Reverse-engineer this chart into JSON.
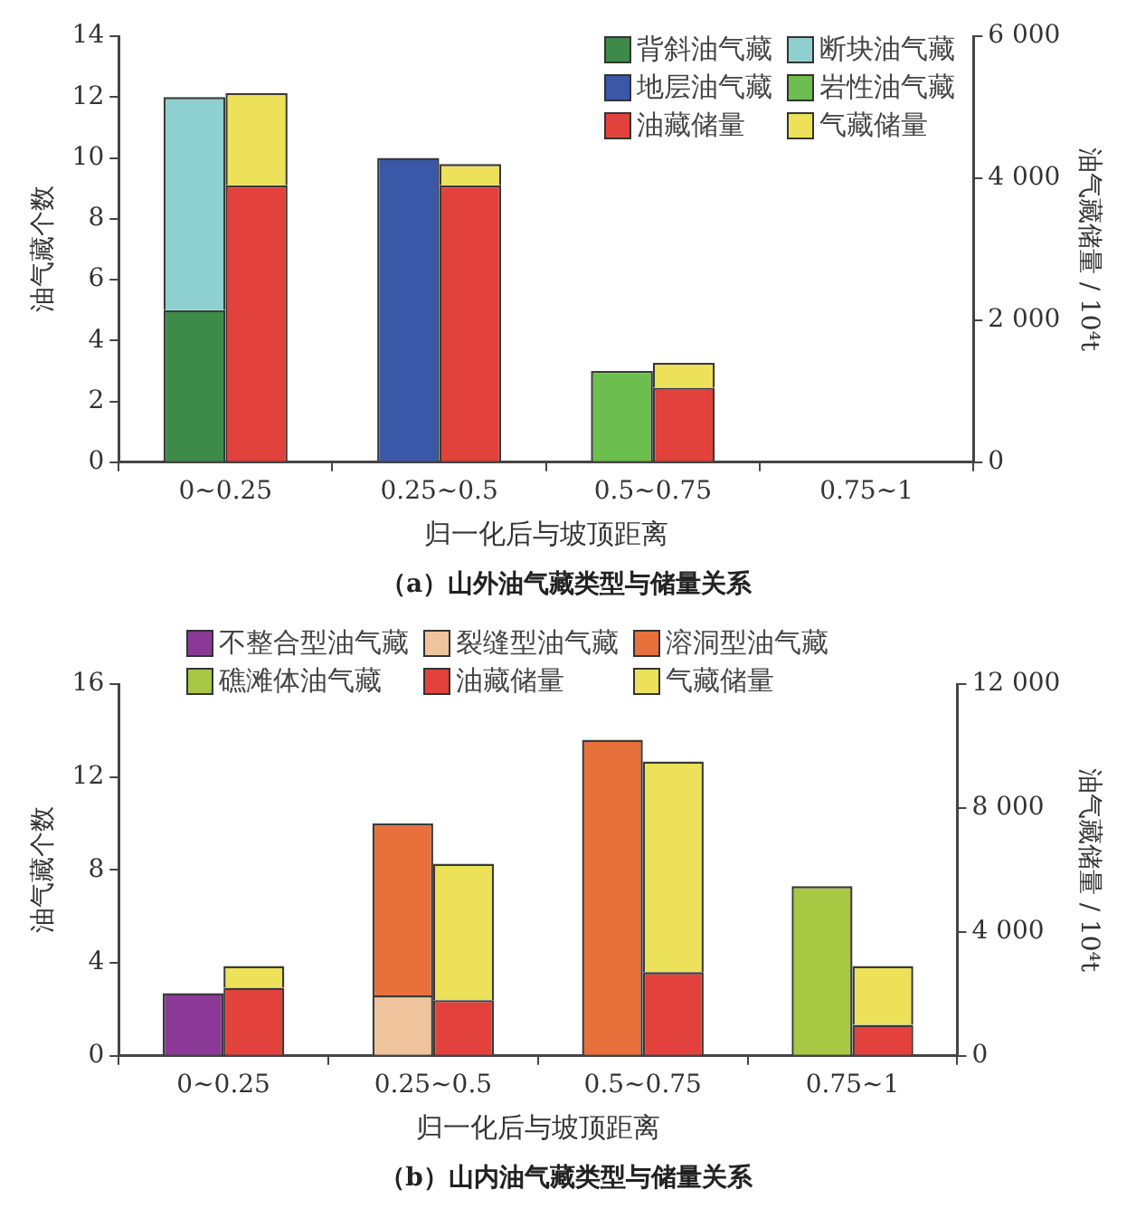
{
  "chart_data": [
    {
      "type": "bar",
      "stacked": true,
      "title": "（a）山外油气藏类型与储量关系",
      "xlabel": "归一化后与坡顶距离",
      "ylabel": "油气藏个数",
      "y2label": "油气藏储量 / 10⁴t",
      "categories": [
        "0~0.25",
        "0.25~0.5",
        "0.5~0.75",
        "0.75~1"
      ],
      "ylim": [
        0,
        14
      ],
      "yticks": [
        0,
        2,
        4,
        6,
        8,
        10,
        12,
        14
      ],
      "y2lim": [
        0,
        6000
      ],
      "y2ticks": [
        0,
        {
          "value": 2000,
          "label": "2 000"
        },
        {
          "value": 4000,
          "label": "4 000"
        },
        {
          "value": 6000,
          "label": "6 000"
        }
      ],
      "grid": false,
      "legend": "top right",
      "series": [
        {
          "name": "背斜油气藏",
          "color": "#3e8a48",
          "values": [
            5,
            null,
            null,
            null
          ]
        },
        {
          "name": "断块油气藏",
          "color": "#8ed0cf",
          "values": [
            7,
            null,
            null,
            null
          ]
        },
        {
          "name": "地层油气藏",
          "color": "#3a57a8",
          "values": [
            null,
            10,
            null,
            null
          ]
        },
        {
          "name": "岩性油气藏",
          "color": "#6cbf4e",
          "values": [
            null,
            null,
            3,
            null
          ]
        },
        {
          "name": "油藏储量",
          "color": "#e2413c",
          "axis": "y2",
          "values": [
            3900,
            3900,
            1050,
            null
          ]
        },
        {
          "name": "气藏储量",
          "color": "#ede15a",
          "axis": "y2",
          "values": [
            1300,
            300,
            350,
            null
          ]
        }
      ]
    },
    {
      "type": "bar",
      "stacked": true,
      "title": "（b）山内油气藏类型与储量关系",
      "xlabel": "归一化后与坡顶距离",
      "ylabel": "油气藏个数",
      "y2label": "油气藏储量 / 10⁴t",
      "categories": [
        "0~0.25",
        "0.25~0.5",
        "0.5~0.75",
        "0.75~1"
      ],
      "ylim": [
        0,
        16
      ],
      "yticks": [
        0,
        4,
        8,
        12,
        16
      ],
      "y2lim": [
        0,
        12000
      ],
      "y2ticks": [
        0,
        {
          "value": 4000,
          "label": "4 000"
        },
        {
          "value": 8000,
          "label": "8 000"
        },
        {
          "value": 12000,
          "label": "12 000"
        }
      ],
      "grid": false,
      "legend": "top",
      "series": [
        {
          "name": "不整合型油气藏",
          "color": "#8a3a96",
          "values": [
            2.7,
            null,
            null,
            null
          ]
        },
        {
          "name": "裂缝型油气藏",
          "color": "#efc39c",
          "values": [
            null,
            2.6,
            null,
            null
          ]
        },
        {
          "name": "溶洞型油气藏",
          "color": "#e8703a",
          "values": [
            null,
            7.4,
            13.6,
            null
          ]
        },
        {
          "name": "礁滩体油气藏",
          "color": "#a8c844",
          "values": [
            null,
            null,
            null,
            7.3
          ]
        },
        {
          "name": "油藏储量",
          "color": "#e2413c",
          "axis": "y2",
          "values": [
            2200,
            1800,
            2700,
            1000
          ]
        },
        {
          "name": "气藏储量",
          "color": "#ede15a",
          "axis": "y2",
          "values": [
            700,
            4400,
            6800,
            1900
          ]
        }
      ]
    }
  ]
}
